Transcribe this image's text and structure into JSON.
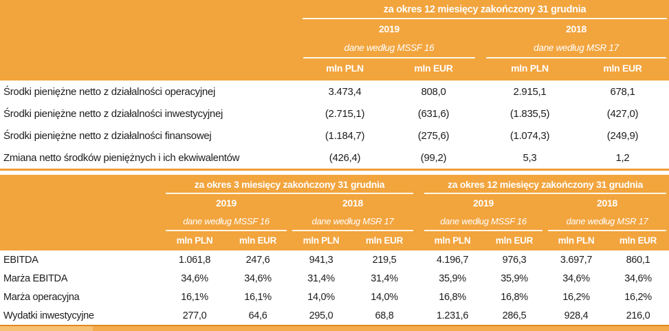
{
  "colors": {
    "orange": "#F2A43D",
    "orange_border": "#EE9D31",
    "orange_dark_line": "#DE8A1F",
    "band_fill": "#F3AB4B",
    "band_left": "#F7C174",
    "cream_line": "#FCF8E8",
    "text_dark": "#1C1C1C"
  },
  "cash_flow_table": {
    "period_title": "za okres 12 miesięcy zakończony 31 grudnia",
    "column_groups": [
      {
        "year": "2019",
        "standard_note": "dane według MSSF 16",
        "units": [
          "mln PLN",
          "mln EUR"
        ]
      },
      {
        "year": "2018",
        "standard_note": "dane według MSR 17",
        "units": [
          "mln PLN",
          "mln EUR"
        ]
      }
    ],
    "rows": [
      {
        "label": "Środki pieniężne netto z działalności operacyjnej",
        "values": [
          "3.473,4",
          "808,0",
          "2.915,1",
          "678,1"
        ]
      },
      {
        "label": "Środki pieniężne netto z działalności inwestycyjnej",
        "values": [
          "(2.715,1)",
          "(631,6)",
          "(1.835,5)",
          "(427,0)"
        ]
      },
      {
        "label": "Środki pieniężne netto z działalności finansowej",
        "values": [
          "(1.184,7)",
          "(275,6)",
          "(1.074,3)",
          "(249,9)"
        ]
      },
      {
        "label": "Zmiana netto środków pieniężnych i ich ekwiwalentów",
        "values": [
          "(426,4)",
          "(99,2)",
          "5,3",
          "1,2"
        ]
      }
    ]
  },
  "kpi_table": {
    "period_groups": [
      {
        "period_title": "za okres 3 miesięcy zakończony 31 grudnia",
        "column_groups": [
          {
            "year": "2019",
            "standard_note": "dane według MSSF 16",
            "units": [
              "mln PLN",
              "mln EUR"
            ]
          },
          {
            "year": "2018",
            "standard_note": "dane według MSR 17",
            "units": [
              "mln PLN",
              "mln EUR"
            ]
          }
        ]
      },
      {
        "period_title": "za okres 12 miesięcy zakończony 31 grudnia",
        "column_groups": [
          {
            "year": "2019",
            "standard_note": "dane według MSSF 16",
            "units": [
              "mln PLN",
              "mln EUR"
            ]
          },
          {
            "year": "2018",
            "standard_note": "dane według MSR 17",
            "units": [
              "mln PLN",
              "mln EUR"
            ]
          }
        ]
      }
    ],
    "rows": [
      {
        "label": "EBITDA",
        "values": [
          "1.061,8",
          "247,6",
          "941,3",
          "219,5",
          "4.196,7",
          "976,3",
          "3.697,7",
          "860,1"
        ]
      },
      {
        "label": "Marża EBITDA",
        "values": [
          "34,6%",
          "34,6%",
          "31,4%",
          "31,4%",
          "35,9%",
          "35,9%",
          "34,6%",
          "34,6%"
        ]
      },
      {
        "label": "Marża operacyjna",
        "values": [
          "16,1%",
          "16,1%",
          "14,0%",
          "14,0%",
          "16,8%",
          "16,8%",
          "16,2%",
          "16,2%"
        ]
      },
      {
        "label": "Wydatki inwestycyjne",
        "values": [
          "277,0",
          "64,6",
          "295,0",
          "68,8",
          "1.231,6",
          "286,5",
          "928,4",
          "216,0"
        ]
      }
    ]
  }
}
